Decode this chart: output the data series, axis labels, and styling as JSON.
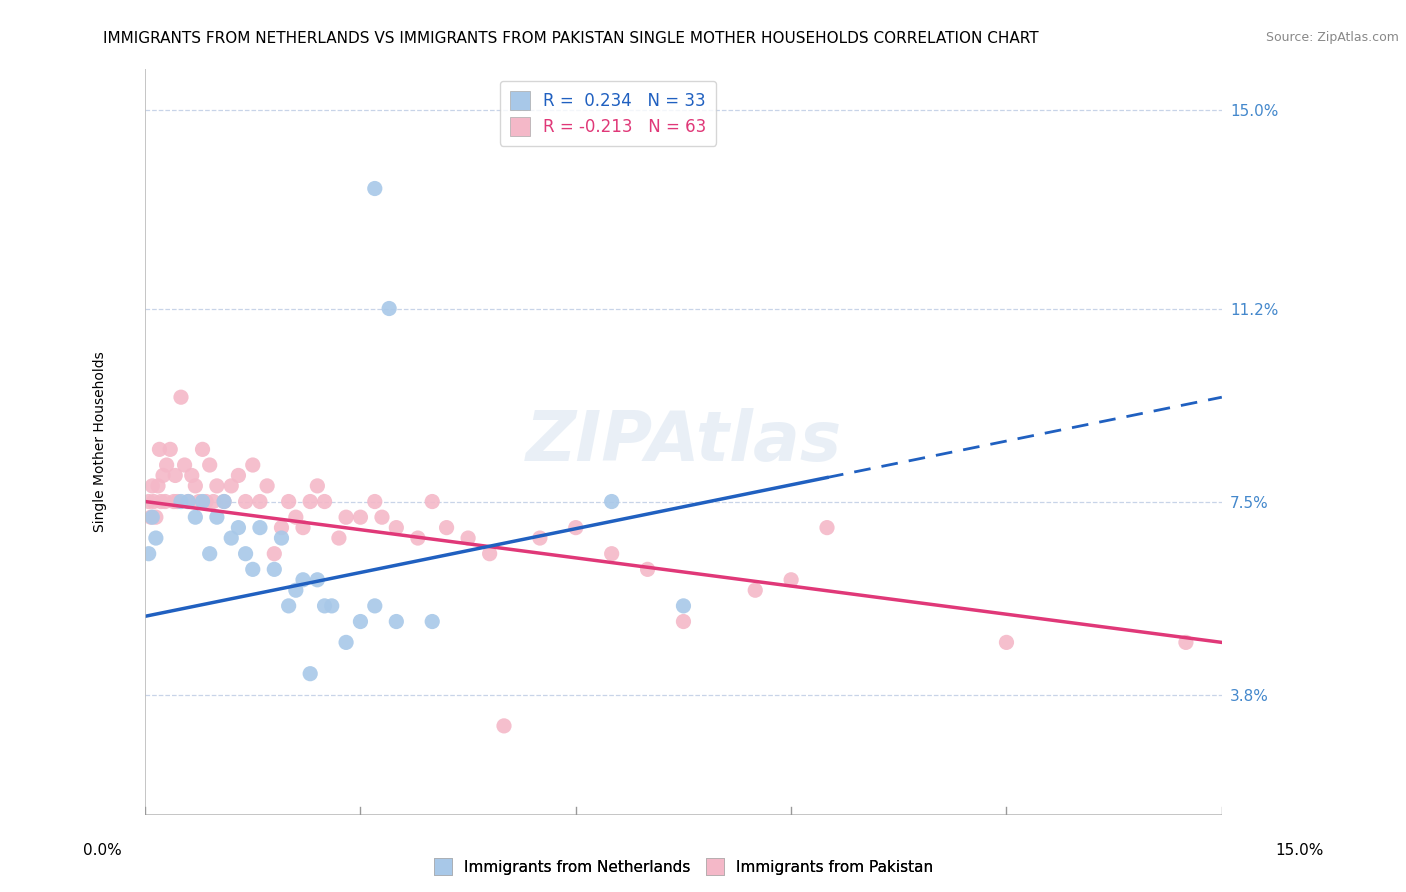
{
  "title": "IMMIGRANTS FROM NETHERLANDS VS IMMIGRANTS FROM PAKISTAN SINGLE MOTHER HOUSEHOLDS CORRELATION CHART",
  "source": "Source: ZipAtlas.com",
  "ylabel": "Single Mother Households",
  "yticks": [
    3.8,
    7.5,
    11.2,
    15.0
  ],
  "ytick_labels": [
    "3.8%",
    "7.5%",
    "11.2%",
    "15.0%"
  ],
  "xmin": 0.0,
  "xmax": 15.0,
  "ymin": 1.5,
  "ymax": 15.8,
  "watermark": "ZIPAtlas",
  "legend_entries": [
    {
      "label": "R =  0.234   N = 33",
      "color": "#a8c8e8"
    },
    {
      "label": "R = -0.213   N = 63",
      "color": "#f4b8c8"
    }
  ],
  "netherlands_color": "#a8c8e8",
  "netherlands_line_color": "#2060c0",
  "netherlands_line_dash": "solid",
  "netherlands_line_dash_ext": "dashed",
  "pakistan_color": "#f4b8c8",
  "pakistan_line_color": "#e03878",
  "pakistan_line_dash": "solid",
  "netherlands_R": 0.234,
  "netherlands_N": 33,
  "pakistan_R": -0.213,
  "pakistan_N": 63,
  "background_color": "#ffffff",
  "grid_color": "#c8d4e8",
  "title_fontsize": 11.0,
  "axis_label_fontsize": 10,
  "tick_fontsize": 11,
  "nl_trend_x0": 0.0,
  "nl_trend_y0": 5.3,
  "nl_trend_x1": 15.0,
  "nl_trend_y1": 9.5,
  "nl_solid_x1": 9.5,
  "pak_trend_x0": 0.0,
  "pak_trend_y0": 7.5,
  "pak_trend_x1": 15.0,
  "pak_trend_y1": 4.8,
  "netherlands_scatter": [
    [
      0.05,
      6.5
    ],
    [
      0.1,
      7.2
    ],
    [
      0.15,
      6.8
    ],
    [
      0.5,
      7.5
    ],
    [
      0.6,
      7.5
    ],
    [
      0.7,
      7.2
    ],
    [
      0.8,
      7.5
    ],
    [
      0.9,
      6.5
    ],
    [
      1.0,
      7.2
    ],
    [
      1.1,
      7.5
    ],
    [
      1.2,
      6.8
    ],
    [
      1.3,
      7.0
    ],
    [
      1.4,
      6.5
    ],
    [
      1.5,
      6.2
    ],
    [
      1.6,
      7.0
    ],
    [
      1.8,
      6.2
    ],
    [
      1.9,
      6.8
    ],
    [
      2.0,
      5.5
    ],
    [
      2.1,
      5.8
    ],
    [
      2.2,
      6.0
    ],
    [
      2.4,
      6.0
    ],
    [
      2.5,
      5.5
    ],
    [
      2.6,
      5.5
    ],
    [
      2.8,
      4.8
    ],
    [
      3.0,
      5.2
    ],
    [
      3.2,
      5.5
    ],
    [
      3.5,
      5.2
    ],
    [
      4.0,
      5.2
    ],
    [
      3.2,
      13.5
    ],
    [
      3.4,
      11.2
    ],
    [
      6.5,
      7.5
    ],
    [
      7.5,
      5.5
    ],
    [
      2.3,
      4.2
    ]
  ],
  "pakistan_scatter": [
    [
      0.05,
      7.5
    ],
    [
      0.08,
      7.2
    ],
    [
      0.1,
      7.8
    ],
    [
      0.12,
      7.5
    ],
    [
      0.15,
      7.2
    ],
    [
      0.18,
      7.8
    ],
    [
      0.2,
      8.5
    ],
    [
      0.22,
      7.5
    ],
    [
      0.25,
      8.0
    ],
    [
      0.28,
      7.5
    ],
    [
      0.3,
      8.2
    ],
    [
      0.35,
      8.5
    ],
    [
      0.4,
      7.5
    ],
    [
      0.42,
      8.0
    ],
    [
      0.45,
      7.5
    ],
    [
      0.5,
      9.5
    ],
    [
      0.55,
      8.2
    ],
    [
      0.6,
      7.5
    ],
    [
      0.65,
      8.0
    ],
    [
      0.7,
      7.8
    ],
    [
      0.75,
      7.5
    ],
    [
      0.8,
      8.5
    ],
    [
      0.85,
      7.5
    ],
    [
      0.9,
      8.2
    ],
    [
      0.95,
      7.5
    ],
    [
      1.0,
      7.8
    ],
    [
      1.1,
      7.5
    ],
    [
      1.2,
      7.8
    ],
    [
      1.3,
      8.0
    ],
    [
      1.4,
      7.5
    ],
    [
      1.5,
      8.2
    ],
    [
      1.6,
      7.5
    ],
    [
      1.7,
      7.8
    ],
    [
      1.8,
      6.5
    ],
    [
      1.9,
      7.0
    ],
    [
      2.0,
      7.5
    ],
    [
      2.1,
      7.2
    ],
    [
      2.2,
      7.0
    ],
    [
      2.3,
      7.5
    ],
    [
      2.4,
      7.8
    ],
    [
      2.5,
      7.5
    ],
    [
      2.7,
      6.8
    ],
    [
      2.8,
      7.2
    ],
    [
      3.0,
      7.2
    ],
    [
      3.2,
      7.5
    ],
    [
      3.3,
      7.2
    ],
    [
      3.5,
      7.0
    ],
    [
      3.8,
      6.8
    ],
    [
      4.0,
      7.5
    ],
    [
      4.2,
      7.0
    ],
    [
      4.5,
      6.8
    ],
    [
      4.8,
      6.5
    ],
    [
      5.0,
      3.2
    ],
    [
      5.5,
      6.8
    ],
    [
      6.0,
      7.0
    ],
    [
      6.5,
      6.5
    ],
    [
      7.0,
      6.2
    ],
    [
      7.5,
      5.2
    ],
    [
      8.5,
      5.8
    ],
    [
      9.0,
      6.0
    ],
    [
      9.5,
      7.0
    ],
    [
      12.0,
      4.8
    ],
    [
      14.5,
      4.8
    ]
  ]
}
